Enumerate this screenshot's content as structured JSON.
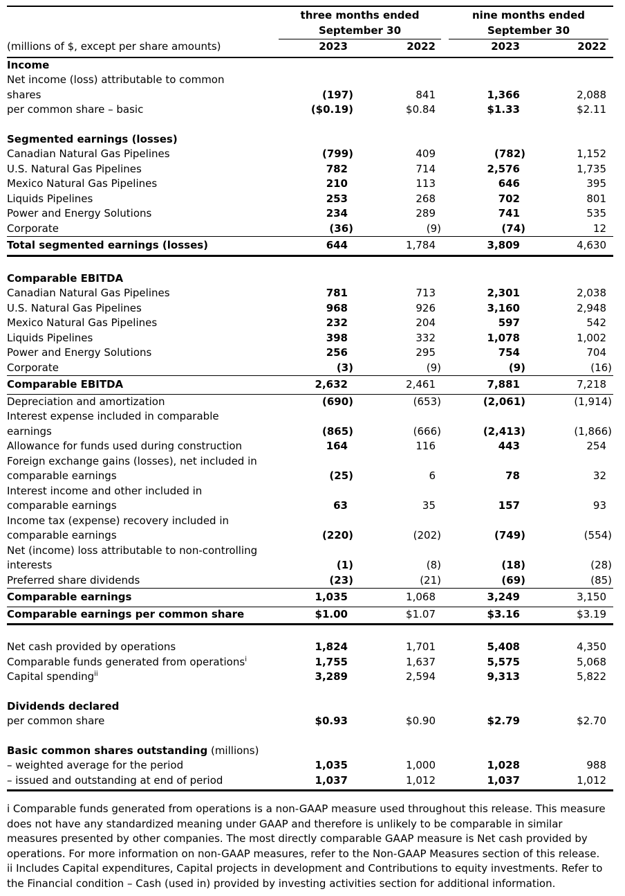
{
  "table": {
    "row_header": "(millions of $, except per share amounts)",
    "col_groups": [
      {
        "title": "three months ended\nSeptember 30",
        "years": [
          "2023",
          "2022"
        ]
      },
      {
        "title": "nine months ended\nSeptember 30",
        "years": [
          "2023",
          "2022"
        ]
      }
    ],
    "rows": [
      {
        "type": "section",
        "label": "Income"
      },
      {
        "type": "data",
        "label": "Net income (loss) attributable to common\nshares",
        "values": [
          "(197)",
          "841",
          "1,366",
          "2,088"
        ]
      },
      {
        "type": "data",
        "label": "per common share – basic",
        "values": [
          "($0.19)",
          "$0.84",
          "$1.33",
          "$2.11"
        ]
      },
      {
        "type": "blank"
      },
      {
        "type": "section",
        "label": "Segmented earnings (losses)"
      },
      {
        "type": "data",
        "label": "Canadian Natural Gas Pipelines",
        "values": [
          "(799)",
          "409",
          "(782)",
          "1,152"
        ]
      },
      {
        "type": "data",
        "label": "U.S. Natural Gas Pipelines",
        "values": [
          "782",
          "714",
          "2,576",
          "1,735"
        ]
      },
      {
        "type": "data",
        "label": "Mexico Natural Gas Pipelines",
        "values": [
          "210",
          "113",
          "646",
          "395"
        ]
      },
      {
        "type": "data",
        "label": "Liquids Pipelines",
        "values": [
          "253",
          "268",
          "702",
          "801"
        ]
      },
      {
        "type": "data",
        "label": "Power and Energy Solutions",
        "values": [
          "234",
          "289",
          "741",
          "535"
        ]
      },
      {
        "type": "data",
        "label": "Corporate",
        "values": [
          "(36)",
          "(9)",
          "(74)",
          "12"
        ]
      },
      {
        "type": "total",
        "label": "Total segmented earnings (losses)",
        "values": [
          "644",
          "1,784",
          "3,809",
          "4,630"
        ],
        "borders": "bt bbk"
      },
      {
        "type": "blank"
      },
      {
        "type": "section",
        "label": "Comparable EBITDA"
      },
      {
        "type": "data",
        "label": "Canadian Natural Gas Pipelines",
        "values": [
          "781",
          "713",
          "2,301",
          "2,038"
        ]
      },
      {
        "type": "data",
        "label": "U.S. Natural Gas Pipelines",
        "values": [
          "968",
          "926",
          "3,160",
          "2,948"
        ]
      },
      {
        "type": "data",
        "label": "Mexico Natural Gas Pipelines",
        "values": [
          "232",
          "204",
          "597",
          "542"
        ]
      },
      {
        "type": "data",
        "label": "Liquids Pipelines",
        "values": [
          "398",
          "332",
          "1,078",
          "1,002"
        ]
      },
      {
        "type": "data",
        "label": "Power and Energy Solutions",
        "values": [
          "256",
          "295",
          "754",
          "704"
        ]
      },
      {
        "type": "data",
        "label": "Corporate",
        "values": [
          "(3)",
          "(9)",
          "(9)",
          "(16)"
        ]
      },
      {
        "type": "total",
        "label": "Comparable EBITDA",
        "values": [
          "2,632",
          "2,461",
          "7,881",
          "7,218"
        ],
        "borders": "bt bb"
      },
      {
        "type": "data",
        "label": "Depreciation and amortization",
        "values": [
          "(690)",
          "(653)",
          "(2,061)",
          "(1,914)"
        ]
      },
      {
        "type": "data",
        "label": "Interest expense included in comparable\nearnings",
        "values": [
          "(865)",
          "(666)",
          "(2,413)",
          "(1,866)"
        ]
      },
      {
        "type": "data",
        "label": "Allowance for funds used during construction",
        "values": [
          "164",
          "116",
          "443",
          "254"
        ]
      },
      {
        "type": "data",
        "label": "Foreign exchange gains (losses), net included in\ncomparable earnings",
        "values": [
          "(25)",
          "6",
          "78",
          "32"
        ]
      },
      {
        "type": "data",
        "label": "Interest income and other included in\ncomparable earnings",
        "values": [
          "63",
          "35",
          "157",
          "93"
        ]
      },
      {
        "type": "data",
        "label": "Income tax (expense) recovery included in\ncomparable earnings",
        "values": [
          "(220)",
          "(202)",
          "(749)",
          "(554)"
        ]
      },
      {
        "type": "data",
        "label": "Net (income) loss attributable to non-controlling\ninterests",
        "values": [
          "(1)",
          "(8)",
          "(18)",
          "(28)"
        ]
      },
      {
        "type": "data",
        "label": "Preferred share dividends",
        "values": [
          "(23)",
          "(21)",
          "(69)",
          "(85)"
        ]
      },
      {
        "type": "total",
        "label": "Comparable earnings",
        "values": [
          "1,035",
          "1,068",
          "3,249",
          "3,150"
        ],
        "borders": "bt bb"
      },
      {
        "type": "total",
        "label": "Comparable earnings per common share",
        "values": [
          "$1.00",
          "$1.07",
          "$3.16",
          "$3.19"
        ],
        "borders": "bbk"
      },
      {
        "type": "blank"
      },
      {
        "type": "data",
        "label": "Net cash provided by operations",
        "values": [
          "1,824",
          "1,701",
          "5,408",
          "4,350"
        ]
      },
      {
        "type": "data",
        "label": "Comparable funds generated from operations",
        "sup": "i",
        "values": [
          "1,755",
          "1,637",
          "5,575",
          "5,068"
        ]
      },
      {
        "type": "data",
        "label": "Capital spending",
        "sup": "ii",
        "values": [
          "3,289",
          "2,594",
          "9,313",
          "5,822"
        ]
      },
      {
        "type": "blank"
      },
      {
        "type": "section",
        "label": "Dividends declared"
      },
      {
        "type": "data",
        "label": "per common share",
        "values": [
          "$0.93",
          "$0.90",
          "$2.79",
          "$2.70"
        ]
      },
      {
        "type": "blank"
      },
      {
        "type": "section",
        "label": "Basic common shares outstanding",
        "suffix": " (millions)"
      },
      {
        "type": "data",
        "label": "– weighted average for the period",
        "values": [
          "1,035",
          "1,000",
          "1,028",
          "988"
        ]
      },
      {
        "type": "data",
        "label": "– issued and outstanding at end of period",
        "values": [
          "1,037",
          "1,012",
          "1,037",
          "1,012"
        ],
        "borders": "bbk"
      }
    ]
  },
  "footnotes": [
    "i Comparable funds generated from operations is a non-GAAP measure used throughout this release. This measure does not have any standardized meaning under GAAP and therefore is unlikely to be comparable in similar measures presented by other companies. The most directly comparable GAAP measure is Net cash provided by operations. For more information on non-GAAP measures, refer to the Non-GAAP Measures section of this release.",
    "ii Includes Capital expenditures, Capital projects in development and Contributions to equity investments. Refer to the Financial condition – Cash (used in) provided by investing activities section for additional information."
  ]
}
